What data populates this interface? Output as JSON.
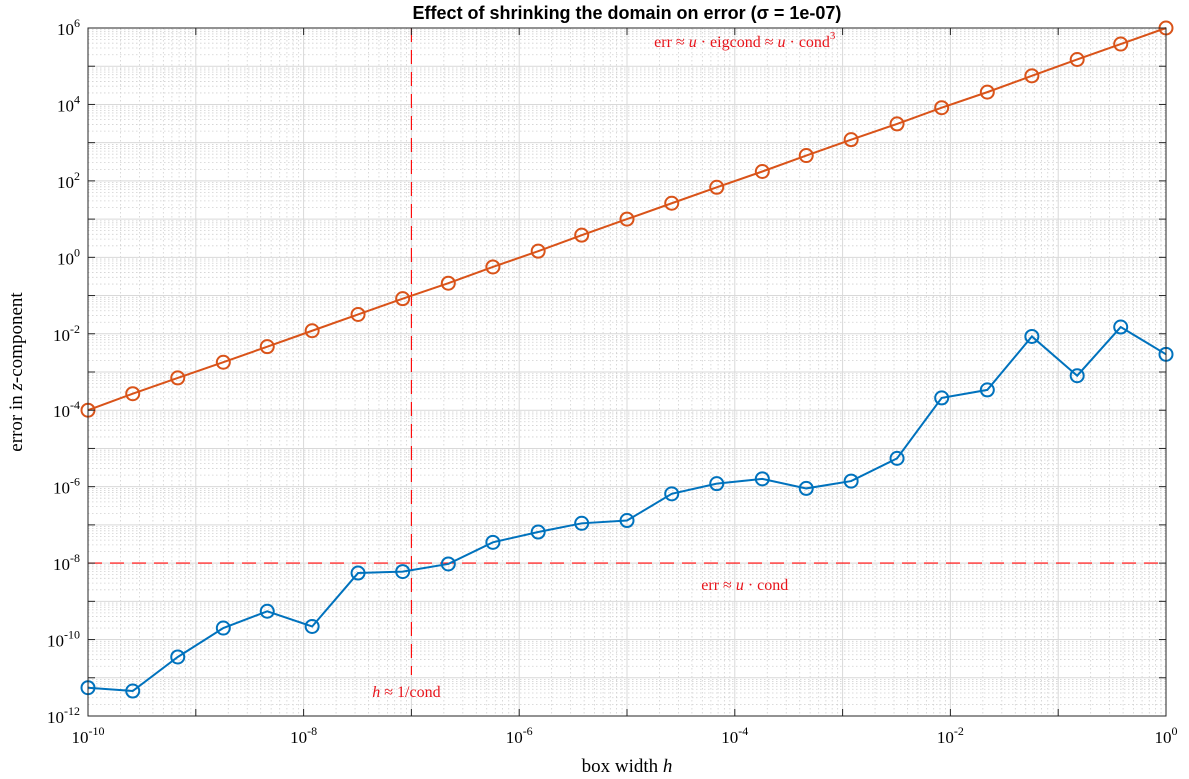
{
  "chart_data": {
    "type": "line",
    "title": "Effect of shrinking the domain on error (σ = 1e-07)",
    "xlabel": "box width",
    "xlabel_var": "h",
    "ylabel": "error in",
    "ylabel_var": "z",
    "ylabel_suffix": "-component",
    "x_scale": "log",
    "y_scale": "log",
    "xlim": [
      1e-10,
      1
    ],
    "ylim": [
      1e-12,
      1000000.0
    ],
    "grid": true,
    "x_ticks": [
      {
        "base": "10",
        "exp": "-10",
        "value": 1e-10
      },
      {
        "base": "10",
        "exp": "-8",
        "value": 1e-08
      },
      {
        "base": "10",
        "exp": "-6",
        "value": 1e-06
      },
      {
        "base": "10",
        "exp": "-4",
        "value": 0.0001
      },
      {
        "base": "10",
        "exp": "-2",
        "value": 0.01
      },
      {
        "base": "10",
        "exp": "0",
        "value": 1
      }
    ],
    "y_ticks": [
      {
        "base": "10",
        "exp": "-12",
        "value": 1e-12
      },
      {
        "base": "10",
        "exp": "-10",
        "value": 1e-10
      },
      {
        "base": "10",
        "exp": "-8",
        "value": 1e-08
      },
      {
        "base": "10",
        "exp": "-6",
        "value": 1e-06
      },
      {
        "base": "10",
        "exp": "-4",
        "value": 0.0001
      },
      {
        "base": "10",
        "exp": "-2",
        "value": 0.01
      },
      {
        "base": "10",
        "exp": "0",
        "value": 1
      },
      {
        "base": "10",
        "exp": "2",
        "value": 100
      },
      {
        "base": "10",
        "exp": "4",
        "value": 10000
      },
      {
        "base": "10",
        "exp": "6",
        "value": 1000000
      }
    ],
    "x": [
      1e-10,
      2.6e-10,
      6.8e-10,
      1.8e-09,
      4.6e-09,
      1.2e-08,
      3.2e-08,
      8.3e-08,
      2.2e-07,
      5.7e-07,
      1.5e-06,
      3.8e-06,
      1e-05,
      2.6e-05,
      6.8e-05,
      0.00018,
      0.00046,
      0.0012,
      0.0032,
      0.0083,
      0.022,
      0.057,
      0.15,
      0.38,
      1
    ],
    "series": [
      {
        "color": "#0072bd",
        "values": [
          5.5e-12,
          4.5e-12,
          3.5e-11,
          2e-10,
          5.5e-10,
          2.2e-10,
          5.5e-09,
          6e-09,
          9.5e-09,
          3.5e-08,
          6.5e-08,
          1.1e-07,
          1.3e-07,
          6.5e-07,
          1.2e-06,
          1.6e-06,
          9e-07,
          1.4e-06,
          5.5e-06,
          0.00021,
          0.00034,
          0.0085,
          0.0008,
          0.015,
          0.0029
        ]
      },
      {
        "color": "#d95319",
        "values": [
          0.0001,
          0.00027,
          0.0007,
          0.0018,
          0.0046,
          0.012,
          0.032,
          0.083,
          0.21,
          0.56,
          1.45,
          3.8,
          10,
          26,
          68,
          176,
          460,
          1200,
          3100,
          8200,
          21000,
          56000,
          150000,
          380000,
          1000000
        ]
      }
    ],
    "reference_lines": [
      {
        "orientation": "horizontal",
        "value": 1e-08,
        "color": "#ff0000"
      },
      {
        "orientation": "vertical",
        "value": 1e-07,
        "color": "#ff0000"
      }
    ],
    "annotations": {
      "top": {
        "text_a": "err ≈ ",
        "var_a": "u",
        "text_b": " · eigcond ≈ ",
        "var_b": "u",
        "text_c": " · cond",
        "sup": "3",
        "x": 0.0001,
        "y": 400000.0
      },
      "mid": {
        "text_a": "err ≈ ",
        "var_a": "u",
        "text_b": " · cond",
        "x": 0.0001,
        "y": 2.5e-09
      },
      "bottom": {
        "var_a": "h",
        "text_a": " ≈ 1/cond",
        "x": 1e-07,
        "y": 4e-12
      }
    }
  }
}
